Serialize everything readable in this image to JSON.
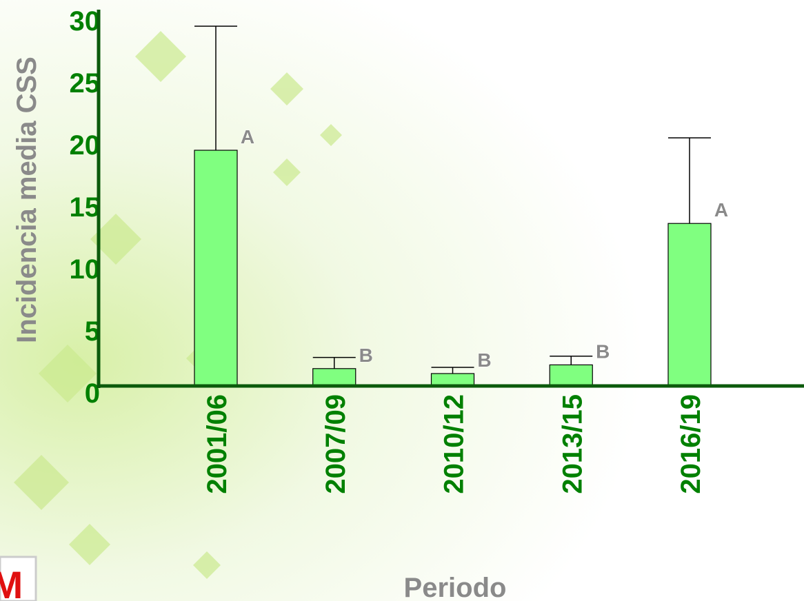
{
  "chart_data": {
    "type": "bar",
    "y_axis_label": "Incidencia media CSS",
    "x_axis_label": "Periodo",
    "categories": [
      "2001/06",
      "2007/09",
      "2010/12",
      "2013/15",
      "2016/19"
    ],
    "values": [
      19.0,
      1.4,
      1.0,
      1.7,
      13.1
    ],
    "errors": [
      10.0,
      0.9,
      0.5,
      0.7,
      6.9
    ],
    "annotations": [
      "A",
      "B",
      "B",
      "B",
      "A"
    ],
    "color": "#80ff80",
    "ylim": [
      0,
      30
    ],
    "yticks": [
      0,
      5,
      10,
      15,
      20,
      25,
      30
    ]
  },
  "logo_text": "M"
}
